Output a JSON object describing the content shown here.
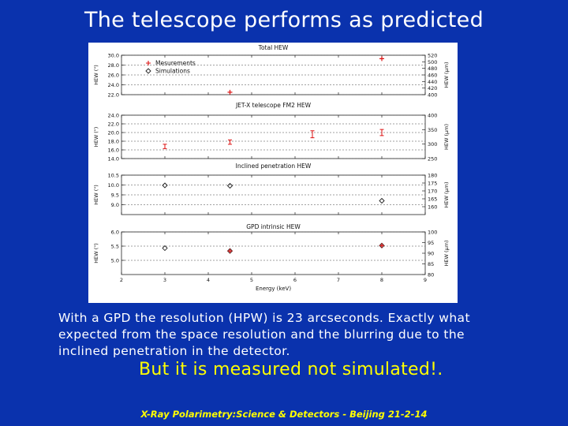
{
  "slide": {
    "title": "The telescope performs as predicted",
    "caption": "With a GPD the resolution (HPW) is 23 arcseconds. Exactly what expected from the space resolution and the blurring due to the inclined penetration in the detector.",
    "emphasis": "But it is measured not simulated!.",
    "footer": "X-Ray Polarimetry:Science & Detectors - Beijing 21-2-14"
  },
  "colors": {
    "background": "#0a32ad",
    "measurements": "#dd1111",
    "simulations": "#202020",
    "emphasis": "#ffff00"
  },
  "chart_data": {
    "type": "scatter",
    "xlabel": "Energy (keV)",
    "xlim": [
      2,
      9
    ],
    "xticks": [
      2,
      3,
      4,
      5,
      6,
      7,
      8,
      9
    ],
    "legend": {
      "position": "top-left",
      "entries": [
        {
          "label": "Mesurements",
          "marker": "plus",
          "color": "#dd1111"
        },
        {
          "label": "Simulations",
          "marker": "diamond",
          "color": "#202020"
        }
      ]
    },
    "panels": [
      {
        "title": "Total HEW",
        "ylabel": "HEW (\")",
        "ylim": [
          22,
          30
        ],
        "yticks": [
          "22.0",
          "24.0",
          "26.0",
          "28.0",
          "30.0"
        ],
        "right_ylabel": "HEW (μm)",
        "right_ylim": [
          400,
          520
        ],
        "right_yticks": [
          "400",
          "420",
          "440",
          "460",
          "480",
          "500",
          "520"
        ],
        "series": [
          {
            "name": "Mesurements",
            "marker": "plus",
            "points": [
              {
                "x": 4.5,
                "y": 22.5
              },
              {
                "x": 8.0,
                "y": 29.3
              }
            ]
          }
        ]
      },
      {
        "title": "JET-X telescope FM2 HEW",
        "ylabel": "HEW (\")",
        "ylim": [
          14,
          24
        ],
        "yticks": [
          "14.0",
          "16.0",
          "18.0",
          "20.0",
          "22.0",
          "24.0"
        ],
        "right_ylabel": "HEW (μm)",
        "right_ylim": [
          250,
          400
        ],
        "right_yticks": [
          "250",
          "300",
          "350",
          "400"
        ],
        "series": [
          {
            "name": "Mesurements",
            "marker": "errorbar",
            "points": [
              {
                "x": 3.0,
                "y": 16.8,
                "err": 0.5
              },
              {
                "x": 4.5,
                "y": 17.8,
                "err": 0.5
              },
              {
                "x": 6.4,
                "y": 19.6,
                "err": 0.8
              },
              {
                "x": 8.0,
                "y": 20.0,
                "err": 0.7
              }
            ]
          }
        ]
      },
      {
        "title": "Inclined penetration HEW",
        "ylabel": "HEW (\")",
        "ylim": [
          8.5,
          10.5
        ],
        "yticks": [
          "9.0",
          "9.5",
          "10.0",
          "10.5"
        ],
        "right_ylabel": "HEW (μm)",
        "right_ylim": [
          155,
          180
        ],
        "right_yticks": [
          "160",
          "165",
          "170",
          "175",
          "180"
        ],
        "series": [
          {
            "name": "Simulations",
            "marker": "diamond",
            "points": [
              {
                "x": 3.0,
                "y": 9.98
              },
              {
                "x": 4.5,
                "y": 9.96
              },
              {
                "x": 8.0,
                "y": 9.2
              }
            ]
          }
        ]
      },
      {
        "title": "GPD intrinsic HEW",
        "ylabel": "HEW (\")",
        "ylim": [
          4.5,
          6.0
        ],
        "yticks": [
          "5.0",
          "5.5",
          "6.0"
        ],
        "right_ylabel": "HEW (μm)",
        "right_ylim": [
          80,
          100
        ],
        "right_yticks": [
          "80",
          "85",
          "90",
          "95",
          "100"
        ],
        "series": [
          {
            "name": "Simulations",
            "marker": "diamond",
            "points": [
              {
                "x": 3.0,
                "y": 5.43
              },
              {
                "x": 4.5,
                "y": 5.33
              },
              {
                "x": 8.0,
                "y": 5.52
              }
            ]
          },
          {
            "name": "Mesurements",
            "marker": "plus",
            "points": [
              {
                "x": 4.5,
                "y": 5.33
              },
              {
                "x": 8.0,
                "y": 5.52
              }
            ]
          }
        ]
      }
    ]
  }
}
